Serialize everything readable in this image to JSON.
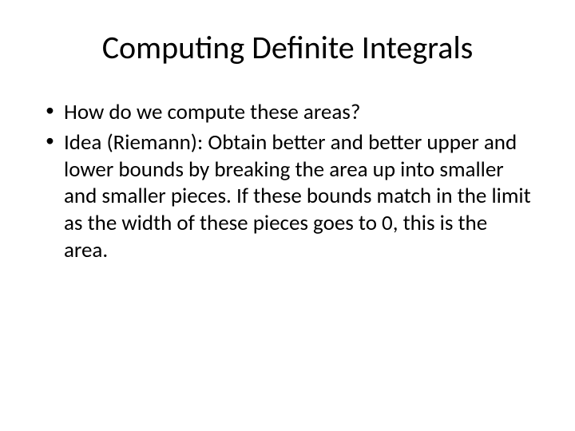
{
  "slide": {
    "title": "Computing Definite Integrals",
    "bullets": [
      "How do we compute these areas?",
      "Idea (Riemann): Obtain better and better upper and lower bounds by breaking the area up into smaller and smaller pieces. If these bounds match in the limit as the width of these pieces goes to 0, this is the area."
    ],
    "colors": {
      "background": "#ffffff",
      "text": "#000000"
    },
    "typography": {
      "title_fontsize": 40,
      "body_fontsize": 27,
      "font_family": "Calibri"
    }
  }
}
